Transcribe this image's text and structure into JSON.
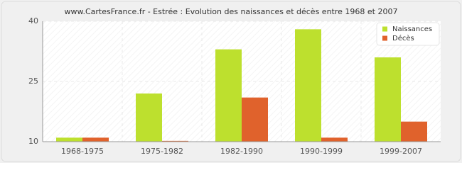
{
  "chart_data": {
    "type": "bar",
    "title": "www.CartesFrance.fr - Estrée : Evolution des naissances et décès entre 1968 et 2007",
    "categories": [
      "1968-1975",
      "1975-1982",
      "1982-1990",
      "1990-1999",
      "1999-2007"
    ],
    "series": [
      {
        "name": "Naissances",
        "color": "#bde02e",
        "values": [
          11,
          22,
          33,
          38,
          31
        ]
      },
      {
        "name": "Décès",
        "color": "#e0622c",
        "values": [
          11,
          10.2,
          21,
          11,
          15
        ]
      }
    ],
    "ylim": [
      10,
      40
    ],
    "yticks": [
      10,
      25,
      40
    ],
    "grid": true,
    "legend": "top-right"
  }
}
